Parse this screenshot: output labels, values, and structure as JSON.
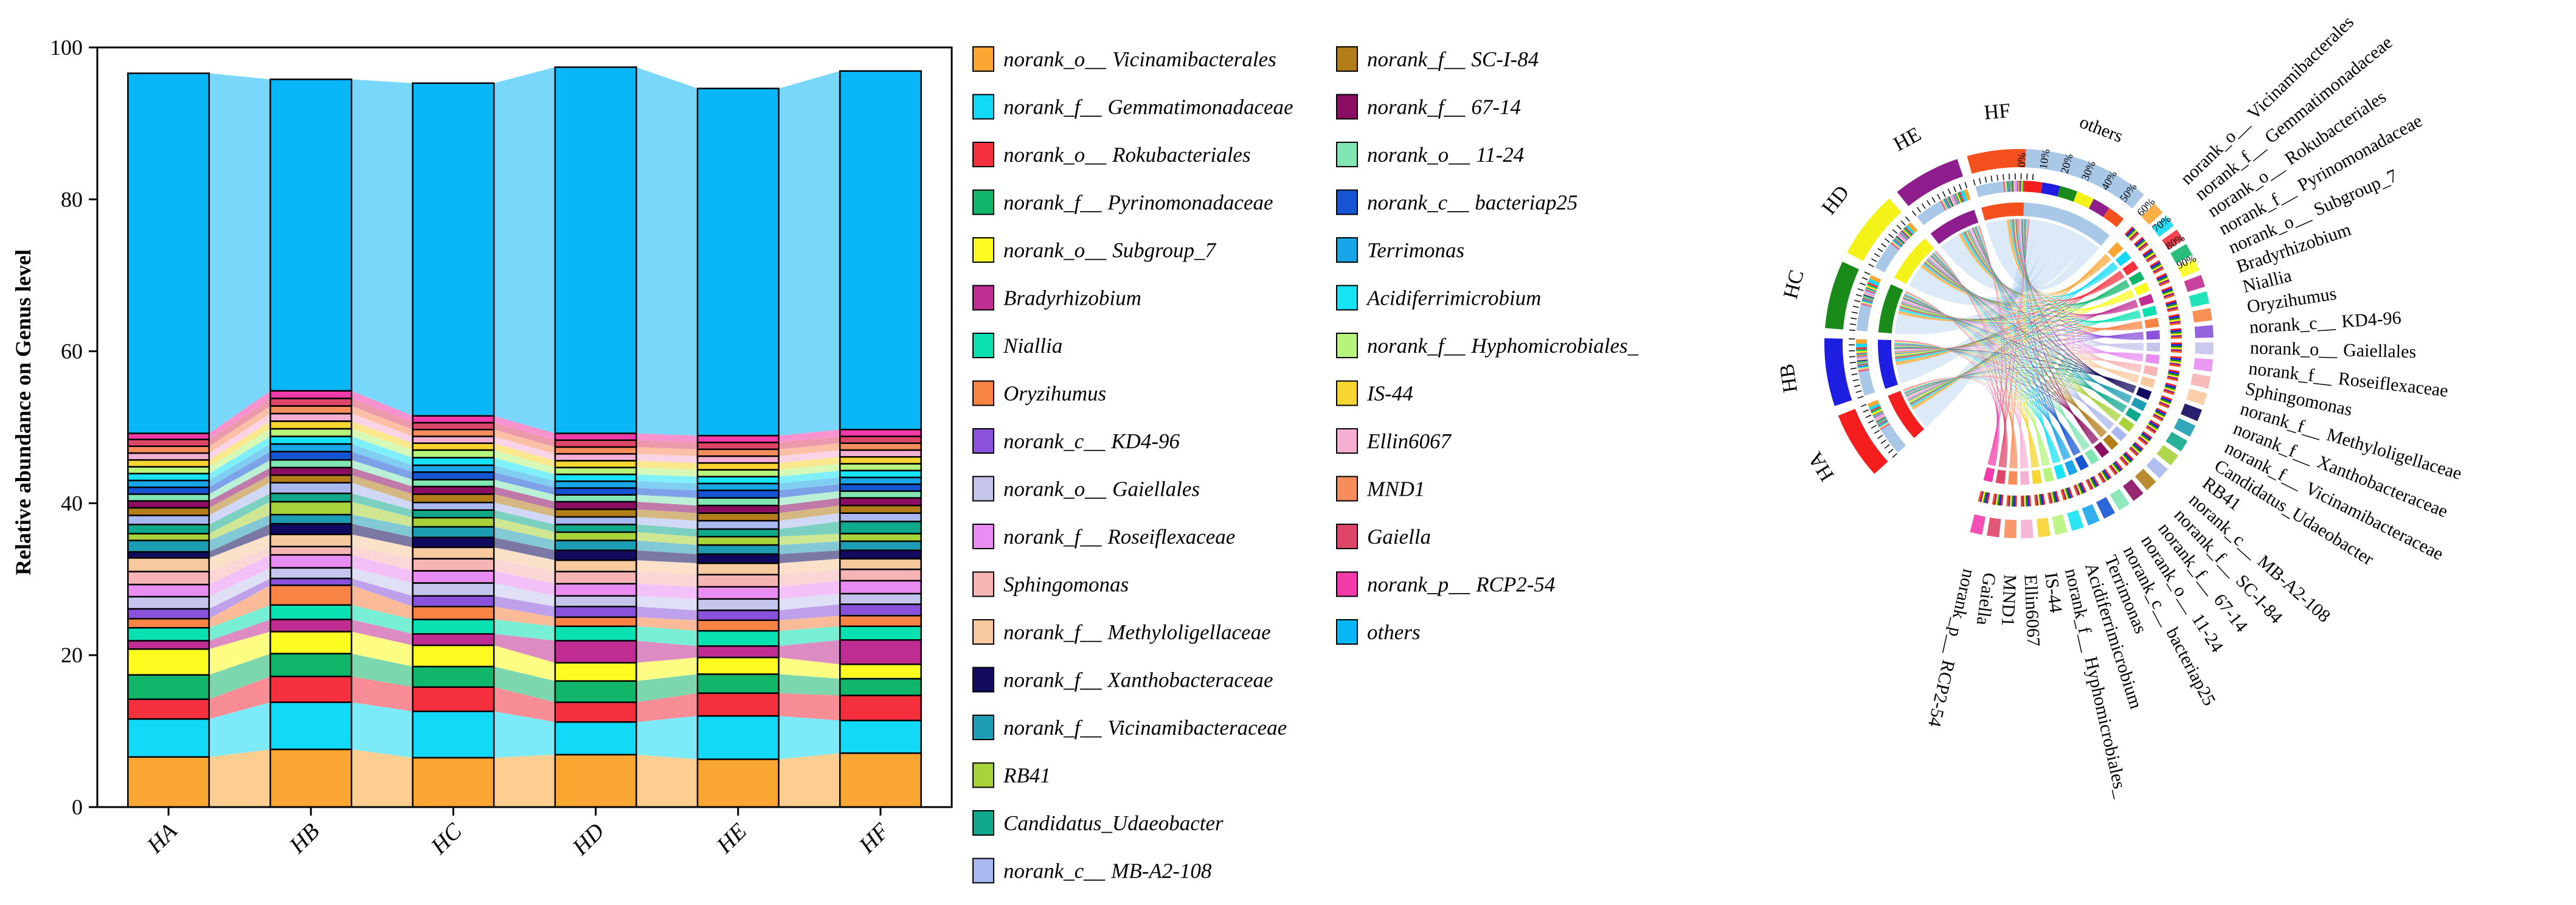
{
  "chart_data": [
    {
      "type": "bar",
      "stacked": true,
      "ylabel": "Relative abundance on Genus level",
      "ylim": [
        0,
        100
      ],
      "yticks": [
        0,
        20,
        40,
        60,
        80,
        100
      ],
      "categories": [
        "HA",
        "HB",
        "HC",
        "HD",
        "HE",
        "HF"
      ],
      "legend_placement": "right",
      "series": [
        {
          "name": "norank_o__Vicinamibacterales",
          "color": "#F9A633",
          "values": [
            6.6,
            7.6,
            6.5,
            6.9,
            6.3,
            7.1
          ]
        },
        {
          "name": "norank_f__Gemmatimonadaceae",
          "color": "#12D9F6",
          "values": [
            5.0,
            6.2,
            6.1,
            4.3,
            5.7,
            4.3
          ]
        },
        {
          "name": "norank_o__Rokubacteriales",
          "color": "#F4303E",
          "values": [
            2.6,
            3.4,
            3.2,
            2.6,
            3.0,
            3.3
          ]
        },
        {
          "name": "norank_f__Pyrinomonadaceae",
          "color": "#12B66B",
          "values": [
            3.2,
            3.0,
            2.7,
            2.8,
            2.5,
            2.2
          ]
        },
        {
          "name": "norank_o__Subgroup_7",
          "color": "#FCFC20",
          "values": [
            3.4,
            2.9,
            2.8,
            2.4,
            2.2,
            1.9
          ]
        },
        {
          "name": "Bradyrhizobium",
          "color": "#C02D92",
          "values": [
            1.1,
            1.6,
            1.5,
            2.9,
            1.5,
            3.2
          ]
        },
        {
          "name": "Niallia",
          "color": "#0AE1B2",
          "values": [
            1.7,
            1.9,
            1.9,
            1.9,
            2.0,
            1.8
          ]
        },
        {
          "name": "Oryzihumus",
          "color": "#F78345",
          "values": [
            1.2,
            2.6,
            1.7,
            1.2,
            1.4,
            1.4
          ]
        },
        {
          "name": "norank_c__KD4-96",
          "color": "#8A52DA",
          "values": [
            1.3,
            0.9,
            1.4,
            1.4,
            1.3,
            1.5
          ]
        },
        {
          "name": "norank_o__Gaiellales",
          "color": "#C4C4EC",
          "values": [
            1.6,
            1.4,
            1.7,
            1.4,
            1.5,
            1.4
          ]
        },
        {
          "name": "norank_f__Roseiflexaceae",
          "color": "#E98DF3",
          "values": [
            1.6,
            1.7,
            1.6,
            1.6,
            1.6,
            1.7
          ]
        },
        {
          "name": "Sphingomonas",
          "color": "#F7B4B4",
          "values": [
            1.7,
            1.1,
            1.6,
            1.6,
            1.6,
            1.5
          ]
        },
        {
          "name": "norank_f__Methyloligellaceae",
          "color": "#F8C99F",
          "values": [
            1.8,
            1.6,
            1.5,
            1.5,
            1.5,
            1.4
          ]
        },
        {
          "name": "norank_f__Xanthobacteraceae",
          "color": "#110A5E",
          "values": [
            0.8,
            1.4,
            1.3,
            1.3,
            1.2,
            1.1
          ]
        },
        {
          "name": "norank_f__Vicinamibacteraceae",
          "color": "#1D9DB3",
          "values": [
            1.5,
            1.2,
            1.4,
            1.3,
            1.2,
            1.2
          ]
        },
        {
          "name": "RB41",
          "color": "#A7D23A",
          "values": [
            0.9,
            1.7,
            1.2,
            1.1,
            1.1,
            1.0
          ]
        },
        {
          "name": "Candidatus_Udaeobacter",
          "color": "#10A98C",
          "values": [
            1.2,
            1.1,
            1.0,
            1.0,
            1.0,
            1.6
          ]
        },
        {
          "name": "norank_c__MB-A2-108",
          "color": "#A9B8EE",
          "values": [
            1.2,
            1.4,
            1.0,
            1.0,
            1.1,
            1.1
          ]
        },
        {
          "name": "norank_f__SC-I-84",
          "color": "#B37D1A",
          "values": [
            1.0,
            1.0,
            1.1,
            1.0,
            1.0,
            1.0
          ]
        },
        {
          "name": "norank_f__67-14",
          "color": "#8C0E63",
          "values": [
            0.9,
            1.0,
            1.0,
            1.0,
            1.0,
            1.0
          ]
        },
        {
          "name": "norank_o__11-24",
          "color": "#82E6B4",
          "values": [
            0.9,
            1.0,
            0.9,
            0.9,
            1.0,
            0.9
          ]
        },
        {
          "name": "norank_c__bacteriap25",
          "color": "#1555D4",
          "values": [
            0.9,
            1.1,
            1.0,
            0.9,
            1.0,
            0.9
          ]
        },
        {
          "name": "Terrimonas",
          "color": "#19A6E9",
          "values": [
            0.9,
            1.0,
            0.9,
            0.9,
            0.9,
            0.9
          ]
        },
        {
          "name": "Acidiferrimicrobium",
          "color": "#16E3F4",
          "values": [
            0.9,
            1.0,
            1.0,
            0.9,
            0.9,
            0.9
          ]
        },
        {
          "name": "norank_f__Hyphomicrobiales_",
          "color": "#B6F47C",
          "values": [
            0.9,
            1.0,
            1.0,
            0.9,
            0.9,
            0.9
          ]
        },
        {
          "name": "IS-44",
          "color": "#F6D531",
          "values": [
            0.9,
            1.0,
            0.9,
            0.9,
            0.9,
            0.9
          ]
        },
        {
          "name": "Ellin6067",
          "color": "#F5AFD1",
          "values": [
            0.9,
            1.0,
            0.9,
            0.9,
            0.9,
            0.9
          ]
        },
        {
          "name": "MND1",
          "color": "#F78D5B",
          "values": [
            0.9,
            1.0,
            0.9,
            0.9,
            0.9,
            0.9
          ]
        },
        {
          "name": "Gaiella",
          "color": "#DE4668",
          "values": [
            0.9,
            1.0,
            0.9,
            0.9,
            0.9,
            0.9
          ]
        },
        {
          "name": "norank_p__RCP2-54",
          "color": "#F23BA8",
          "values": [
            0.8,
            1.0,
            0.9,
            0.9,
            0.9,
            0.9
          ]
        },
        {
          "name": "others",
          "color": "#0AB7F6",
          "values": [
            47.4,
            41.0,
            43.8,
            48.2,
            45.7,
            47.2
          ]
        }
      ]
    },
    {
      "type": "chord",
      "ticks": [
        "0%",
        "10%",
        "20%",
        "30%",
        "40%",
        "50%",
        "60%",
        "70%",
        "80%",
        "90%"
      ],
      "samples": [
        {
          "name": "HA",
          "color": "#F41E1E"
        },
        {
          "name": "HB",
          "color": "#1E1EE3"
        },
        {
          "name": "HC",
          "color": "#1A8A1A"
        },
        {
          "name": "HD",
          "color": "#F3F31A"
        },
        {
          "name": "HE",
          "color": "#8E1E8E"
        },
        {
          "name": "HF",
          "color": "#F4501E"
        }
      ],
      "taxa": [
        "others",
        "norank_o__Vicinamibacterales",
        "norank_f__Gemmatimonadaceae",
        "norank_o__Rokubacteriales",
        "norank_f__Pyrinomonadaceae",
        "norank_o__Subgroup_7",
        "Bradyrhizobium",
        "Niallia",
        "Oryzihumus",
        "norank_c__KD4-96",
        "norank_o__Gaiellales",
        "norank_f__Roseiflexaceae",
        "Sphingomonas",
        "norank_f__Methyloligellaceae",
        "norank_f__Xanthobacteraceae",
        "norank_f__Vicinamibacteraceae",
        "Candidatus_Udaeobacter",
        "RB41",
        "norank_c__MB-A2-108",
        "norank_f__SC-I-84",
        "norank_f__67-14",
        "norank_o__11-24",
        "norank_c__bacteriap25",
        "Terrimonas",
        "Acidiferrimicrobium",
        "norank_f__Hyphomicrobiales_",
        "IS-44",
        "Ellin6067",
        "MND1",
        "Gaiella",
        "norank_p__RCP2-54"
      ]
    }
  ]
}
